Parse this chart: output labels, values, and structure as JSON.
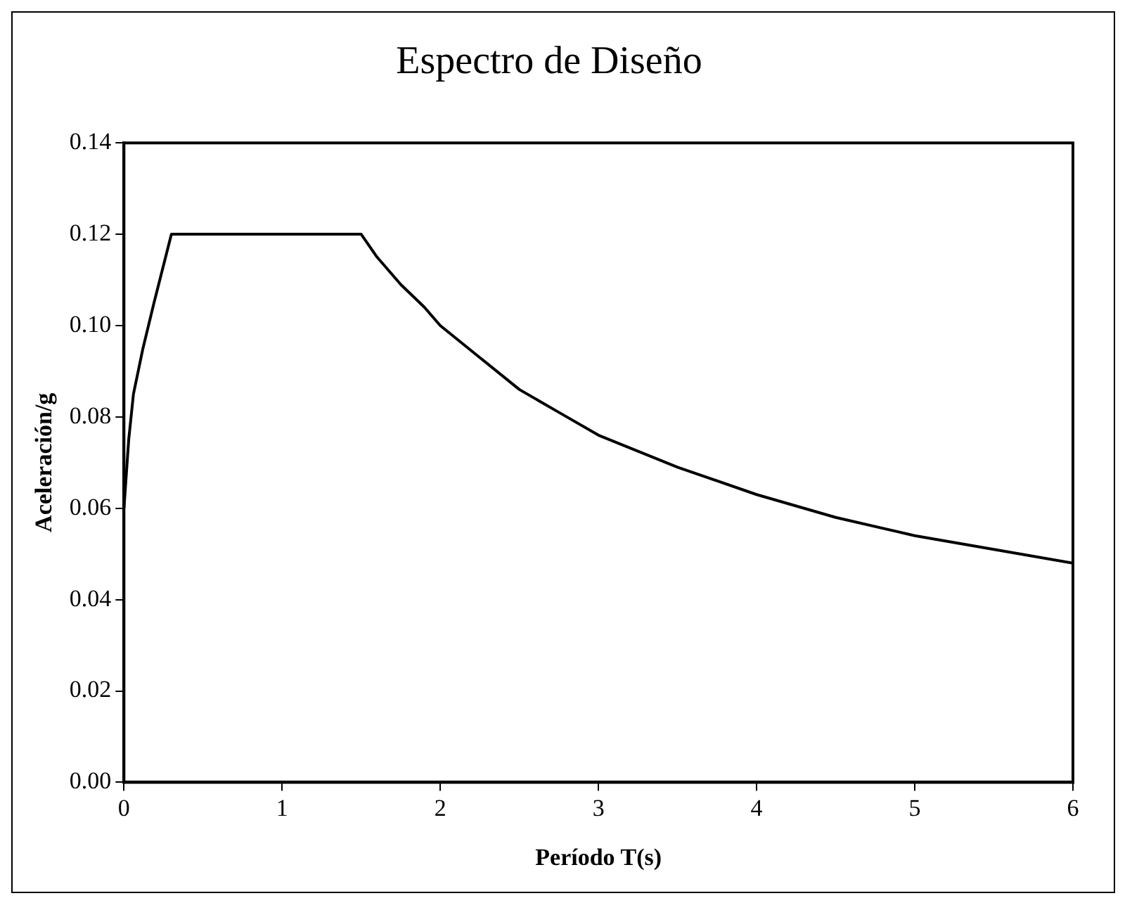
{
  "chart_data": {
    "type": "line",
    "title": "Espectro de Diseño",
    "xlabel": "Período T(s)",
    "ylabel": "Aceleración/g",
    "series": [
      {
        "color": "#000000",
        "x": [
          0,
          0.03,
          0.06,
          0.12,
          0.19,
          0.3,
          0.9,
          1.2,
          1.5,
          1.6,
          1.75,
          1.9,
          2,
          2.25,
          2.5,
          2.75,
          3,
          3.5,
          4,
          4.5,
          5,
          5.5,
          6
        ],
        "values": [
          0.06,
          0.075,
          0.085,
          0.095,
          0.105,
          0.12,
          0.12,
          0.12,
          0.12,
          0.115,
          0.109,
          0.104,
          0.1,
          0.093,
          0.086,
          0.081,
          0.076,
          0.069,
          0.063,
          0.058,
          0.054,
          0.051,
          0.048
        ]
      }
    ],
    "xlim": [
      0,
      6
    ],
    "xticks": [
      0,
      1,
      2,
      3,
      4,
      5,
      6
    ],
    "ylim": [
      0,
      0.14
    ],
    "yticks": [
      {
        "value": 0,
        "label": "0.00"
      },
      {
        "value": 0.02,
        "label": "0.02"
      },
      {
        "value": 0.04,
        "label": "0.04"
      },
      {
        "value": 0.06,
        "label": "0.06"
      },
      {
        "value": 0.08,
        "label": "0.08"
      },
      {
        "value": 0.1,
        "label": "0.10"
      },
      {
        "value": 0.12,
        "label": "0.12"
      },
      {
        "value": 0.14,
        "label": "0.14"
      }
    ],
    "grid": false,
    "legend": false,
    "marker": "none",
    "line_style": "solid"
  }
}
